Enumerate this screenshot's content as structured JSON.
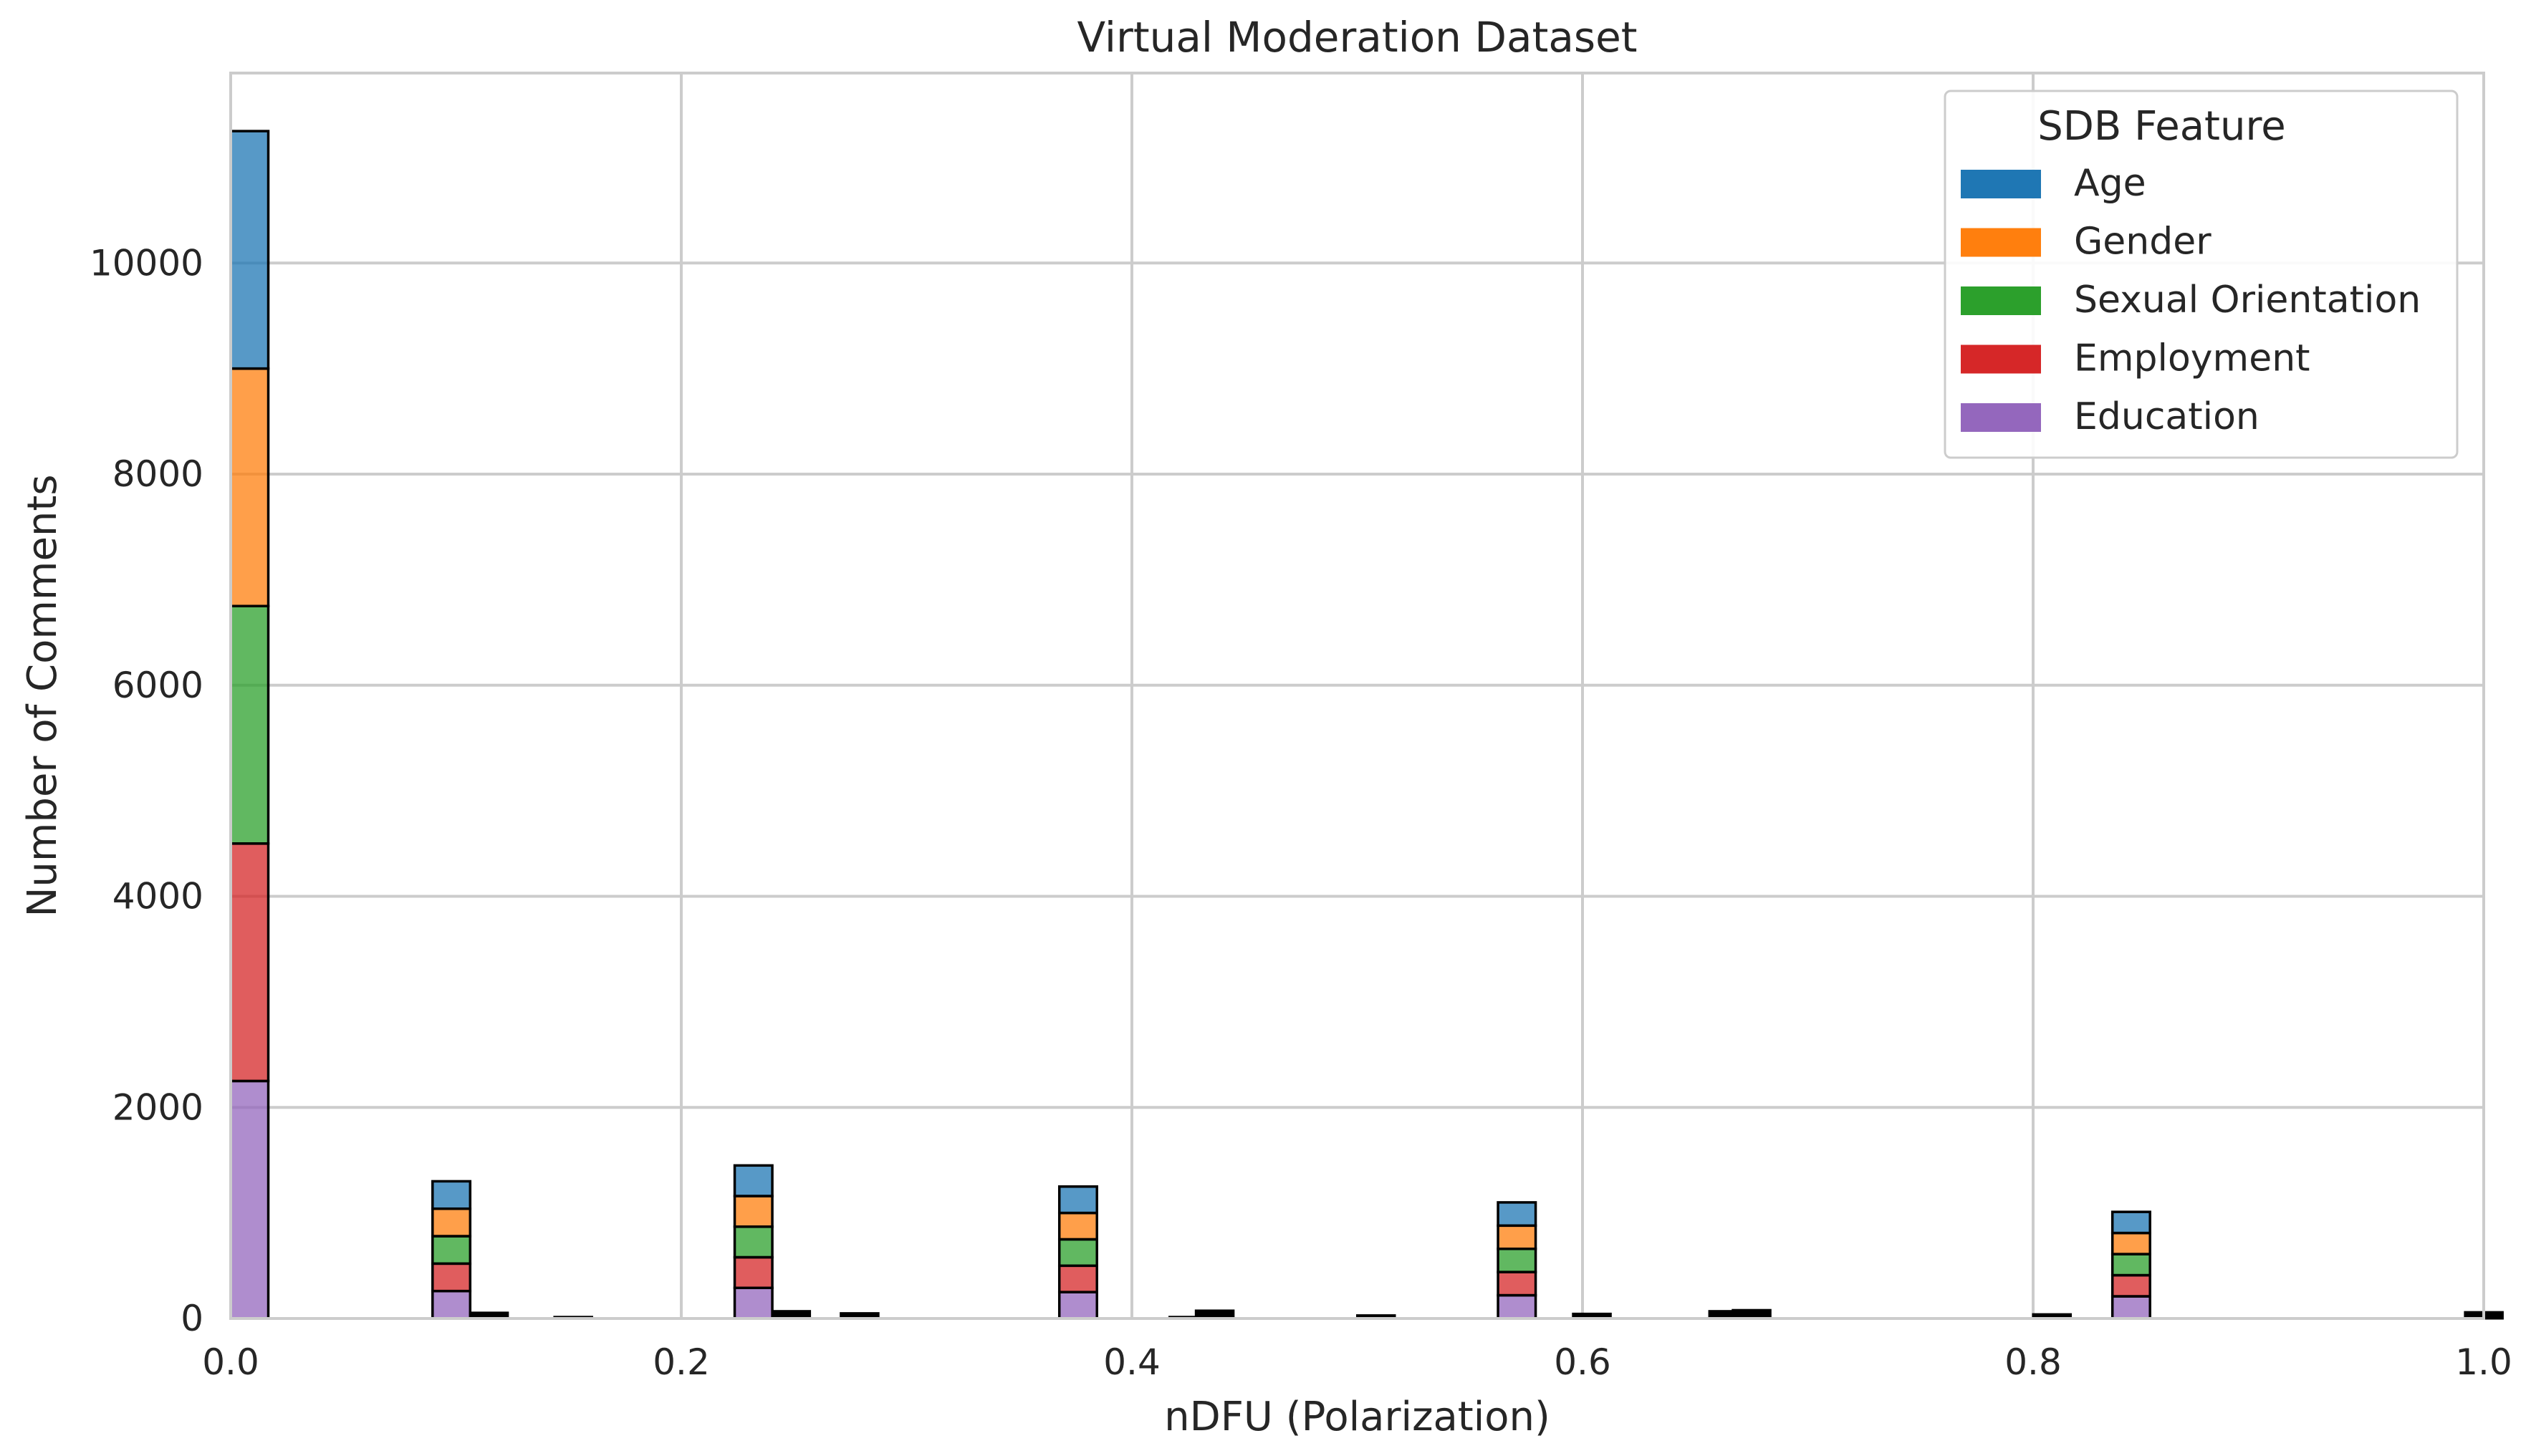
{
  "chart_data": {
    "type": "bar",
    "stacked": true,
    "title": "Virtual Moderation Dataset",
    "xlabel": "nDFU (Polarization)",
    "ylabel": "Number of Comments",
    "xlim": [
      0.0,
      1.0
    ],
    "ylim": [
      0,
      11800
    ],
    "xticks": [
      "0.0",
      "0.2",
      "0.4",
      "0.6",
      "0.8",
      "1.0"
    ],
    "yticks": [
      "0",
      "2000",
      "4000",
      "6000",
      "8000",
      "10000"
    ],
    "grid": true,
    "legend": {
      "title": "SDB Feature",
      "placement": "top-right"
    },
    "bins": [
      0.0,
      0.0896,
      0.2237,
      0.3678,
      0.5625,
      0.8352
    ],
    "bin_width": 0.0167,
    "series": [
      {
        "name": "Education",
        "color": "#9467bd",
        "values": [
          2250,
          260,
          290,
          250,
          220,
          210
        ]
      },
      {
        "name": "Employment",
        "color": "#d62728",
        "values": [
          2250,
          260,
          290,
          250,
          220,
          200
        ]
      },
      {
        "name": "Sexual Orientation",
        "color": "#2ca02c",
        "values": [
          2250,
          260,
          290,
          250,
          220,
          200
        ]
      },
      {
        "name": "Gender",
        "color": "#ff7f0e",
        "values": [
          2250,
          260,
          290,
          250,
          220,
          200
        ]
      },
      {
        "name": "Age",
        "color": "#1f77b4",
        "values": [
          2250,
          260,
          290,
          250,
          220,
          200
        ]
      }
    ],
    "other_bins": {
      "color": "#000000",
      "x": [
        0.1063,
        0.1437,
        0.2404,
        0.2708,
        0.4167,
        0.4284,
        0.5,
        0.5958,
        0.6563,
        0.6667,
        0.8,
        0.9917
      ],
      "values": [
        55,
        15,
        70,
        50,
        15,
        75,
        30,
        45,
        70,
        80,
        40,
        60
      ]
    }
  }
}
